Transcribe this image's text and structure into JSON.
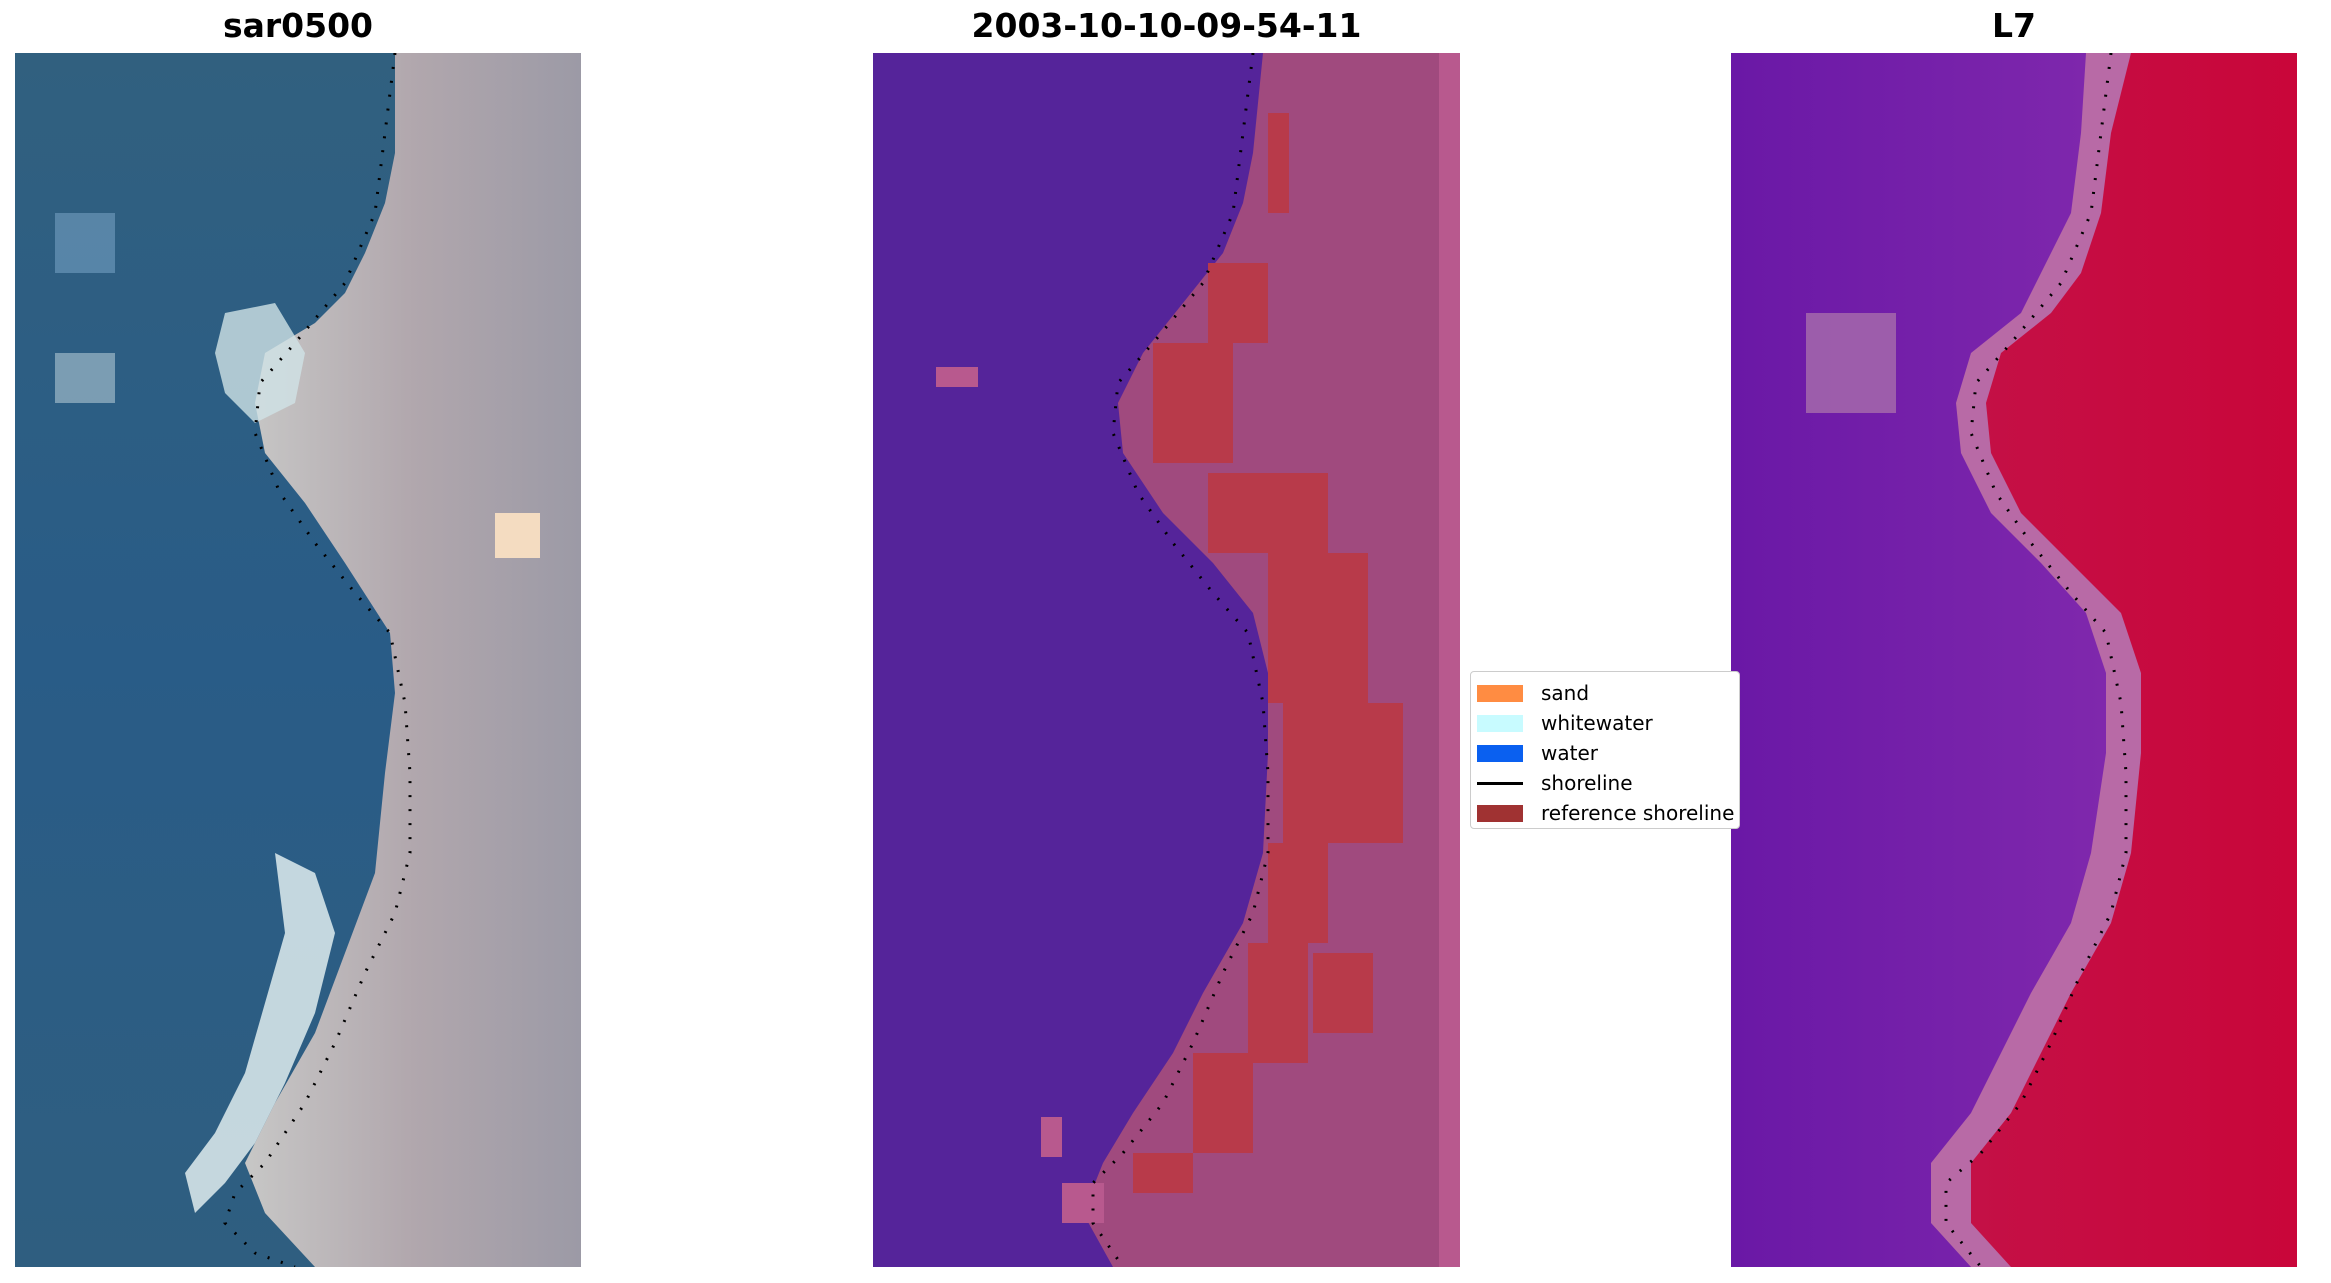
{
  "panels": [
    {
      "title": "sar0500"
    },
    {
      "title": "2003-10-10-09-54-11"
    },
    {
      "title": "L7"
    }
  ],
  "legend": {
    "items": [
      {
        "label": "sand",
        "color": "#ff8c42",
        "kind": "patch"
      },
      {
        "label": "whitewater",
        "color": "#c8fbff",
        "kind": "patch"
      },
      {
        "label": "water",
        "color": "#0a60f0",
        "kind": "patch"
      },
      {
        "label": "shoreline",
        "color": "#000000",
        "kind": "line"
      },
      {
        "label": "reference shoreline",
        "color": "#a03232",
        "kind": "patch"
      }
    ]
  },
  "colors": {
    "ocean_rgb": "#2f5f86",
    "land_rgb": "#a9a4ad",
    "surf_rgb": "#dfeef0",
    "water_class": "#55249a",
    "land_class": "#a04a7e",
    "sand_overlay": "#b83a4a",
    "index_water": "#7a22a8",
    "index_land": "#c8083c",
    "index_edge": "#b86aa6"
  }
}
